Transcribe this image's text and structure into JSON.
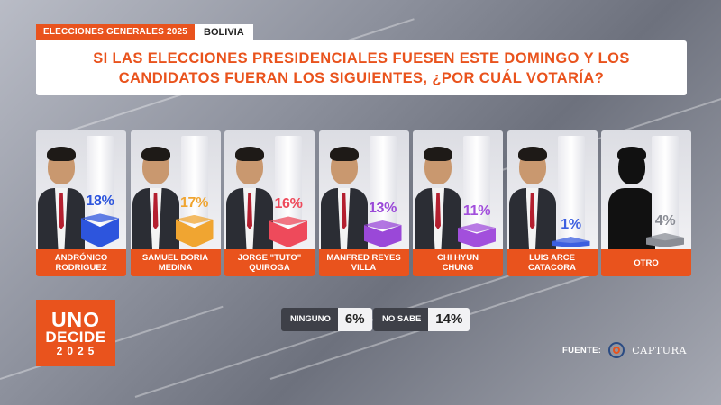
{
  "header": {
    "tag": "ELECCIONES GENERALES 2025",
    "country": "BOLIVIA",
    "question": "SI LAS ELECCIONES PRESIDENCIALES FUESEN ESTE DOMINGO Y LOS CANDIDATOS FUERAN LOS SIGUIENTES, ¿POR CUÁL VOTARÍA?"
  },
  "chart_data": {
    "type": "bar",
    "title": "",
    "categories": [
      "ANDRÓNICO\nRODRIGUEZ",
      "SAMUEL DORIA\nMEDINA",
      "JORGE \"TUTO\"\nQUIROGA",
      "MANFRED REYES\nVILLA",
      "CHI HYUN\nCHUNG",
      "LUIS ARCE\nCATACORA",
      "OTRO"
    ],
    "values": [
      18,
      17,
      16,
      13,
      11,
      1,
      4
    ],
    "labels": [
      "18%",
      "17%",
      "16%",
      "13%",
      "11%",
      "1%",
      "4%"
    ],
    "colors": [
      "#2d55dd",
      "#f0a531",
      "#ee4a5b",
      "#9a48d8",
      "#a24fdc",
      "#3c5fe0",
      "#8a8d95"
    ],
    "unit": "%",
    "ylim": [
      0,
      100
    ],
    "grid": false,
    "legend": "none"
  },
  "others": [
    {
      "label": "NINGUNO",
      "value": "6%"
    },
    {
      "label": "NO SABE",
      "value": "14%"
    }
  ],
  "logo": {
    "line1": "UNO",
    "line2": "DECIDE",
    "line3": "2025"
  },
  "source": {
    "label": "FUENTE:",
    "brand": "CAPTURA",
    "icon": "captura-logo-icon"
  }
}
